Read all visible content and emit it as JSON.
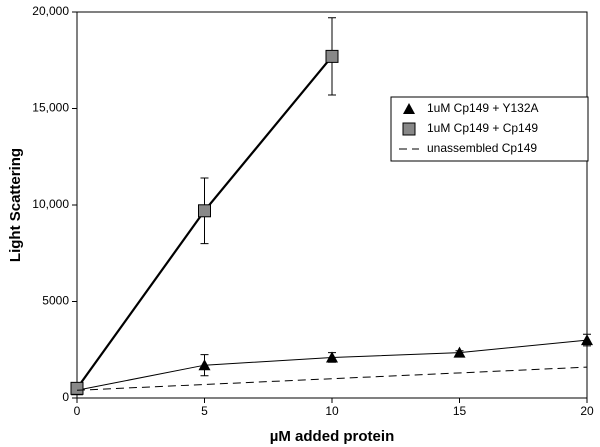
{
  "chart_data": {
    "type": "line",
    "xlabel": "µM added protein",
    "ylabel": "Light Scattering",
    "xlim": [
      0,
      20
    ],
    "xticks": [
      0,
      5,
      10,
      15,
      20
    ],
    "ylim": [
      0,
      20000
    ],
    "yticks": [
      0,
      5000,
      {
        "value": 10000,
        "label": "10,000"
      },
      {
        "value": 15000,
        "label": "15,000"
      },
      {
        "value": 20000,
        "label": "20,000"
      }
    ],
    "legend": "upper right",
    "series": [
      {
        "name": "1uM Cp149 + Y132A",
        "color": "#000000",
        "marker": "triangle",
        "line_style": "solid",
        "line_width": 1,
        "x": [
          0,
          5,
          10,
          15,
          20
        ],
        "values": [
          400,
          1700,
          2100,
          2350,
          3000
        ],
        "errors": [
          null,
          550,
          250,
          100,
          300
        ]
      },
      {
        "name": "1uM Cp149 + Cp149",
        "color": "#888888",
        "marker": "square",
        "line_style": "solid",
        "line_width": 2.2,
        "x": [
          0,
          10,
          5
        ],
        "values": [
          500,
          17700,
          9700
        ],
        "errors": [
          null,
          2000,
          1700
        ]
      },
      {
        "name": "unassembled Cp149",
        "color": "#000000",
        "marker": null,
        "line_style": "dashed",
        "line_width": 1,
        "x": [
          0,
          20
        ],
        "values": [
          400,
          1600
        ]
      }
    ]
  }
}
